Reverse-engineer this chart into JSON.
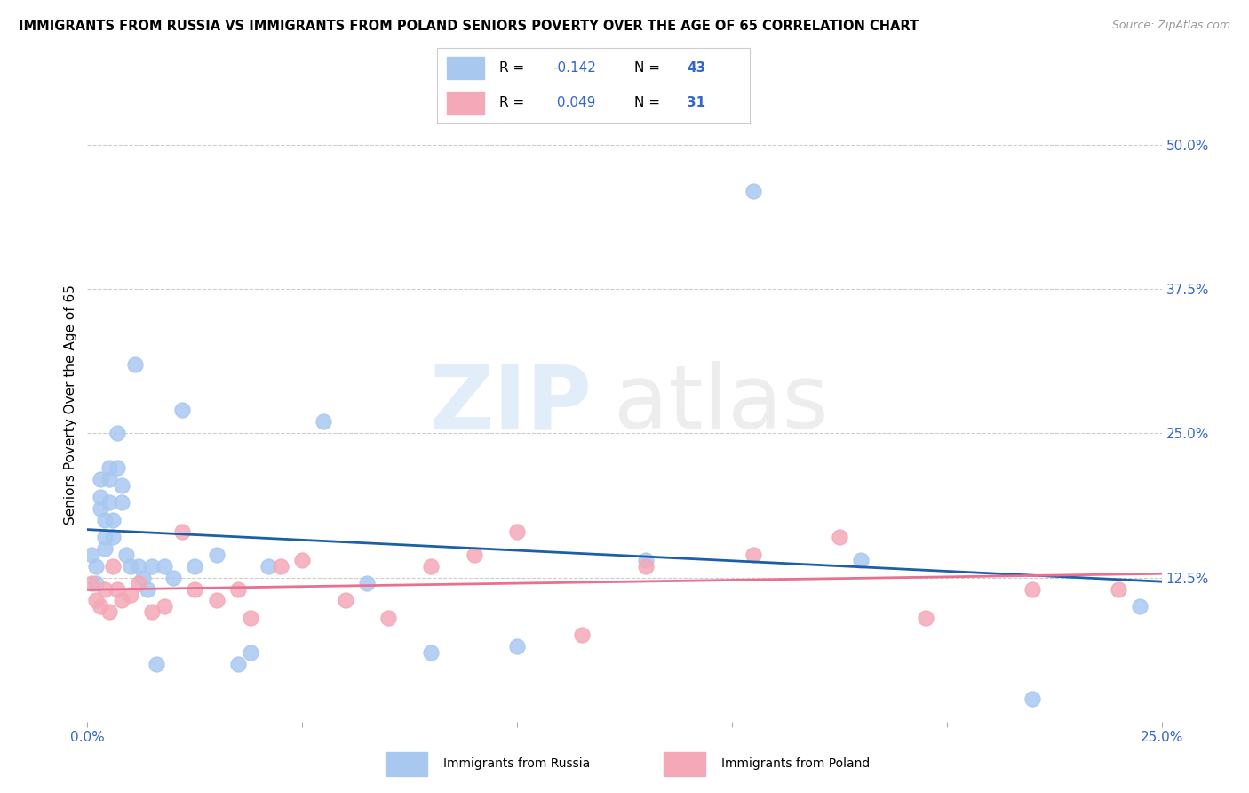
{
  "title": "IMMIGRANTS FROM RUSSIA VS IMMIGRANTS FROM POLAND SENIORS POVERTY OVER THE AGE OF 65 CORRELATION CHART",
  "source": "Source: ZipAtlas.com",
  "ylabel": "Seniors Poverty Over the Age of 65",
  "xlim": [
    0.0,
    0.25
  ],
  "ylim": [
    0.0,
    0.55
  ],
  "xticks": [
    0.0,
    0.05,
    0.1,
    0.15,
    0.2,
    0.25
  ],
  "xtick_labels": [
    "0.0%",
    "",
    "",
    "",
    "",
    "25.0%"
  ],
  "ytick_right": [
    0.125,
    0.25,
    0.375,
    0.5
  ],
  "ytick_right_labels": [
    "12.5%",
    "25.0%",
    "37.5%",
    "50.0%"
  ],
  "russia_R": -0.142,
  "russia_N": 43,
  "poland_R": 0.049,
  "poland_N": 31,
  "russia_color": "#a8c8f0",
  "poland_color": "#f4a8b8",
  "russia_line_color": "#1a5fa8",
  "poland_line_color": "#e87090",
  "background_color": "#ffffff",
  "grid_color": "#cccccc",
  "watermark_text": "ZIPatlas",
  "accent_color": "#3366cc",
  "russia_x": [
    0.001,
    0.002,
    0.002,
    0.003,
    0.003,
    0.003,
    0.004,
    0.004,
    0.004,
    0.005,
    0.005,
    0.005,
    0.006,
    0.006,
    0.007,
    0.007,
    0.008,
    0.008,
    0.009,
    0.01,
    0.011,
    0.012,
    0.013,
    0.014,
    0.015,
    0.016,
    0.018,
    0.02,
    0.022,
    0.025,
    0.03,
    0.035,
    0.038,
    0.042,
    0.055,
    0.065,
    0.08,
    0.1,
    0.13,
    0.155,
    0.18,
    0.22,
    0.245
  ],
  "russia_y": [
    0.145,
    0.135,
    0.12,
    0.21,
    0.195,
    0.185,
    0.175,
    0.16,
    0.15,
    0.22,
    0.21,
    0.19,
    0.175,
    0.16,
    0.25,
    0.22,
    0.205,
    0.19,
    0.145,
    0.135,
    0.31,
    0.135,
    0.125,
    0.115,
    0.135,
    0.05,
    0.135,
    0.125,
    0.27,
    0.135,
    0.145,
    0.05,
    0.06,
    0.135,
    0.26,
    0.12,
    0.06,
    0.065,
    0.14,
    0.46,
    0.14,
    0.02,
    0.1
  ],
  "poland_x": [
    0.001,
    0.002,
    0.003,
    0.004,
    0.005,
    0.006,
    0.007,
    0.008,
    0.01,
    0.012,
    0.015,
    0.018,
    0.022,
    0.025,
    0.03,
    0.035,
    0.038,
    0.045,
    0.05,
    0.06,
    0.07,
    0.08,
    0.09,
    0.1,
    0.115,
    0.13,
    0.155,
    0.175,
    0.195,
    0.22,
    0.24
  ],
  "poland_y": [
    0.12,
    0.105,
    0.1,
    0.115,
    0.095,
    0.135,
    0.115,
    0.105,
    0.11,
    0.12,
    0.095,
    0.1,
    0.165,
    0.115,
    0.105,
    0.115,
    0.09,
    0.135,
    0.14,
    0.105,
    0.09,
    0.135,
    0.145,
    0.165,
    0.075,
    0.135,
    0.145,
    0.16,
    0.09,
    0.115,
    0.115
  ]
}
